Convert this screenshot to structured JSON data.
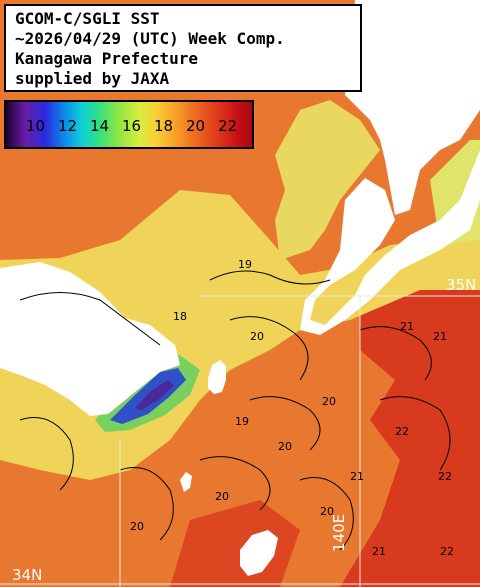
{
  "title": {
    "line1": "GCOM-C/SGLI SST",
    "line2": "~2026/04/29 (UTC) Week Comp.",
    "line3": "Kanagawa Prefecture",
    "line4": "supplied by JAXA"
  },
  "legend": {
    "labels": [
      "10",
      "12",
      "14",
      "16",
      "18",
      "20",
      "22"
    ]
  },
  "graticule": {
    "lat_35": "35N",
    "lat_34": "34N",
    "lon_140": "140E"
  },
  "contour_labels": [
    "19",
    "18",
    "19",
    "20",
    "20",
    "21",
    "21",
    "21",
    "22",
    "22",
    "20",
    "20",
    "20",
    "20",
    "21",
    "22"
  ],
  "colors": {
    "land": "#ffffff",
    "water_cool": "#f0d45a",
    "water_warm": "#e8782f",
    "water_hot": "#d83a1e",
    "water_cold": "#3050c8",
    "grid_line": "#e8e8e8"
  }
}
